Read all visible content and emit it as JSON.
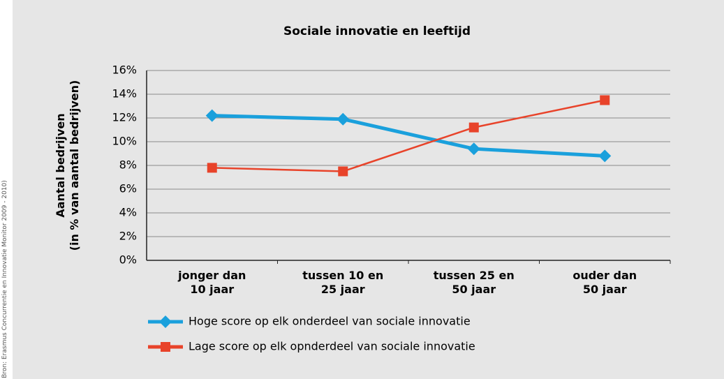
{
  "chart_data": {
    "type": "line",
    "title": "Sociale innovatie en leeftijd",
    "y_label": "Aantal bedrijven\n(in % van aantal bedrijven)",
    "source": "Bron: Erasmus Concurrentie en Innovatie Monitor 2009 - 2010)",
    "categories": [
      "jonger dan\n10 jaar",
      "tussen 10 en\n25 jaar",
      "tussen 25 en\n50 jaar",
      "ouder dan\n50 jaar"
    ],
    "series": [
      {
        "name": "Hoge score op elk onderdeel van sociale innovatie",
        "color": "#1aa0dc",
        "marker": "diamond",
        "values": [
          12.2,
          11.9,
          9.4,
          8.8
        ]
      },
      {
        "name": "Lage score op elk opnderdeel van sociale innovatie",
        "color": "#e8432a",
        "marker": "square",
        "values": [
          7.8,
          7.5,
          11.2,
          13.5
        ]
      }
    ],
    "ylim": [
      0,
      16
    ],
    "yticks": [
      {
        "value": 0,
        "label": "0%"
      },
      {
        "value": 2,
        "label": "2%"
      },
      {
        "value": 4,
        "label": "4%"
      },
      {
        "value": 6,
        "label": "6%"
      },
      {
        "value": 8,
        "label": "8%"
      },
      {
        "value": 10,
        "label": "10%"
      },
      {
        "value": 12,
        "label": "12%"
      },
      {
        "value": 14,
        "label": "14%"
      },
      {
        "value": 16,
        "label": "16%"
      }
    ],
    "grid": true
  }
}
